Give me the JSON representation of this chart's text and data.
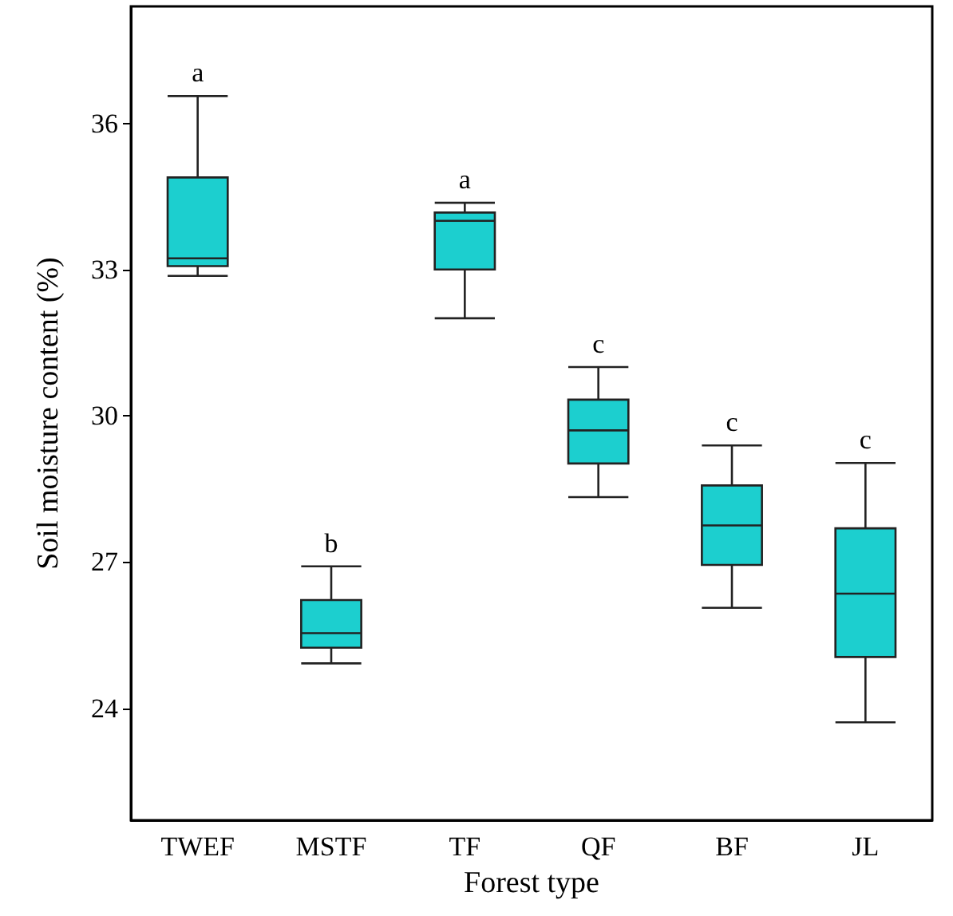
{
  "chart_data": {
    "type": "box",
    "xlabel": "Forest type",
    "ylabel": "Soil moisture content (%)",
    "categories": [
      "TWEF",
      "MSTF",
      "TF",
      "QF",
      "BF",
      "JL"
    ],
    "color": "#1ccfcf",
    "boxes": [
      {
        "low": 32.87,
        "q1": 33.07,
        "median": 33.23,
        "q3": 34.89,
        "high": 36.56
      },
      {
        "low": 24.92,
        "q1": 25.24,
        "median": 25.54,
        "q3": 26.22,
        "high": 26.91
      },
      {
        "low": 32.0,
        "q1": 33.0,
        "median": 34.0,
        "q3": 34.17,
        "high": 34.37
      },
      {
        "low": 28.33,
        "q1": 29.02,
        "median": 29.7,
        "q3": 30.33,
        "high": 31.0
      },
      {
        "low": 26.06,
        "q1": 26.94,
        "median": 27.75,
        "q3": 28.57,
        "high": 29.39
      },
      {
        "low": 23.71,
        "q1": 25.05,
        "median": 26.35,
        "q3": 27.69,
        "high": 29.03
      }
    ],
    "ylim": [
      21.7,
      38.4
    ],
    "yticks": [
      24,
      27,
      30,
      33,
      36
    ],
    "grid": false,
    "annotations": [
      "a",
      "b",
      "a",
      "c",
      "c",
      "c"
    ]
  }
}
